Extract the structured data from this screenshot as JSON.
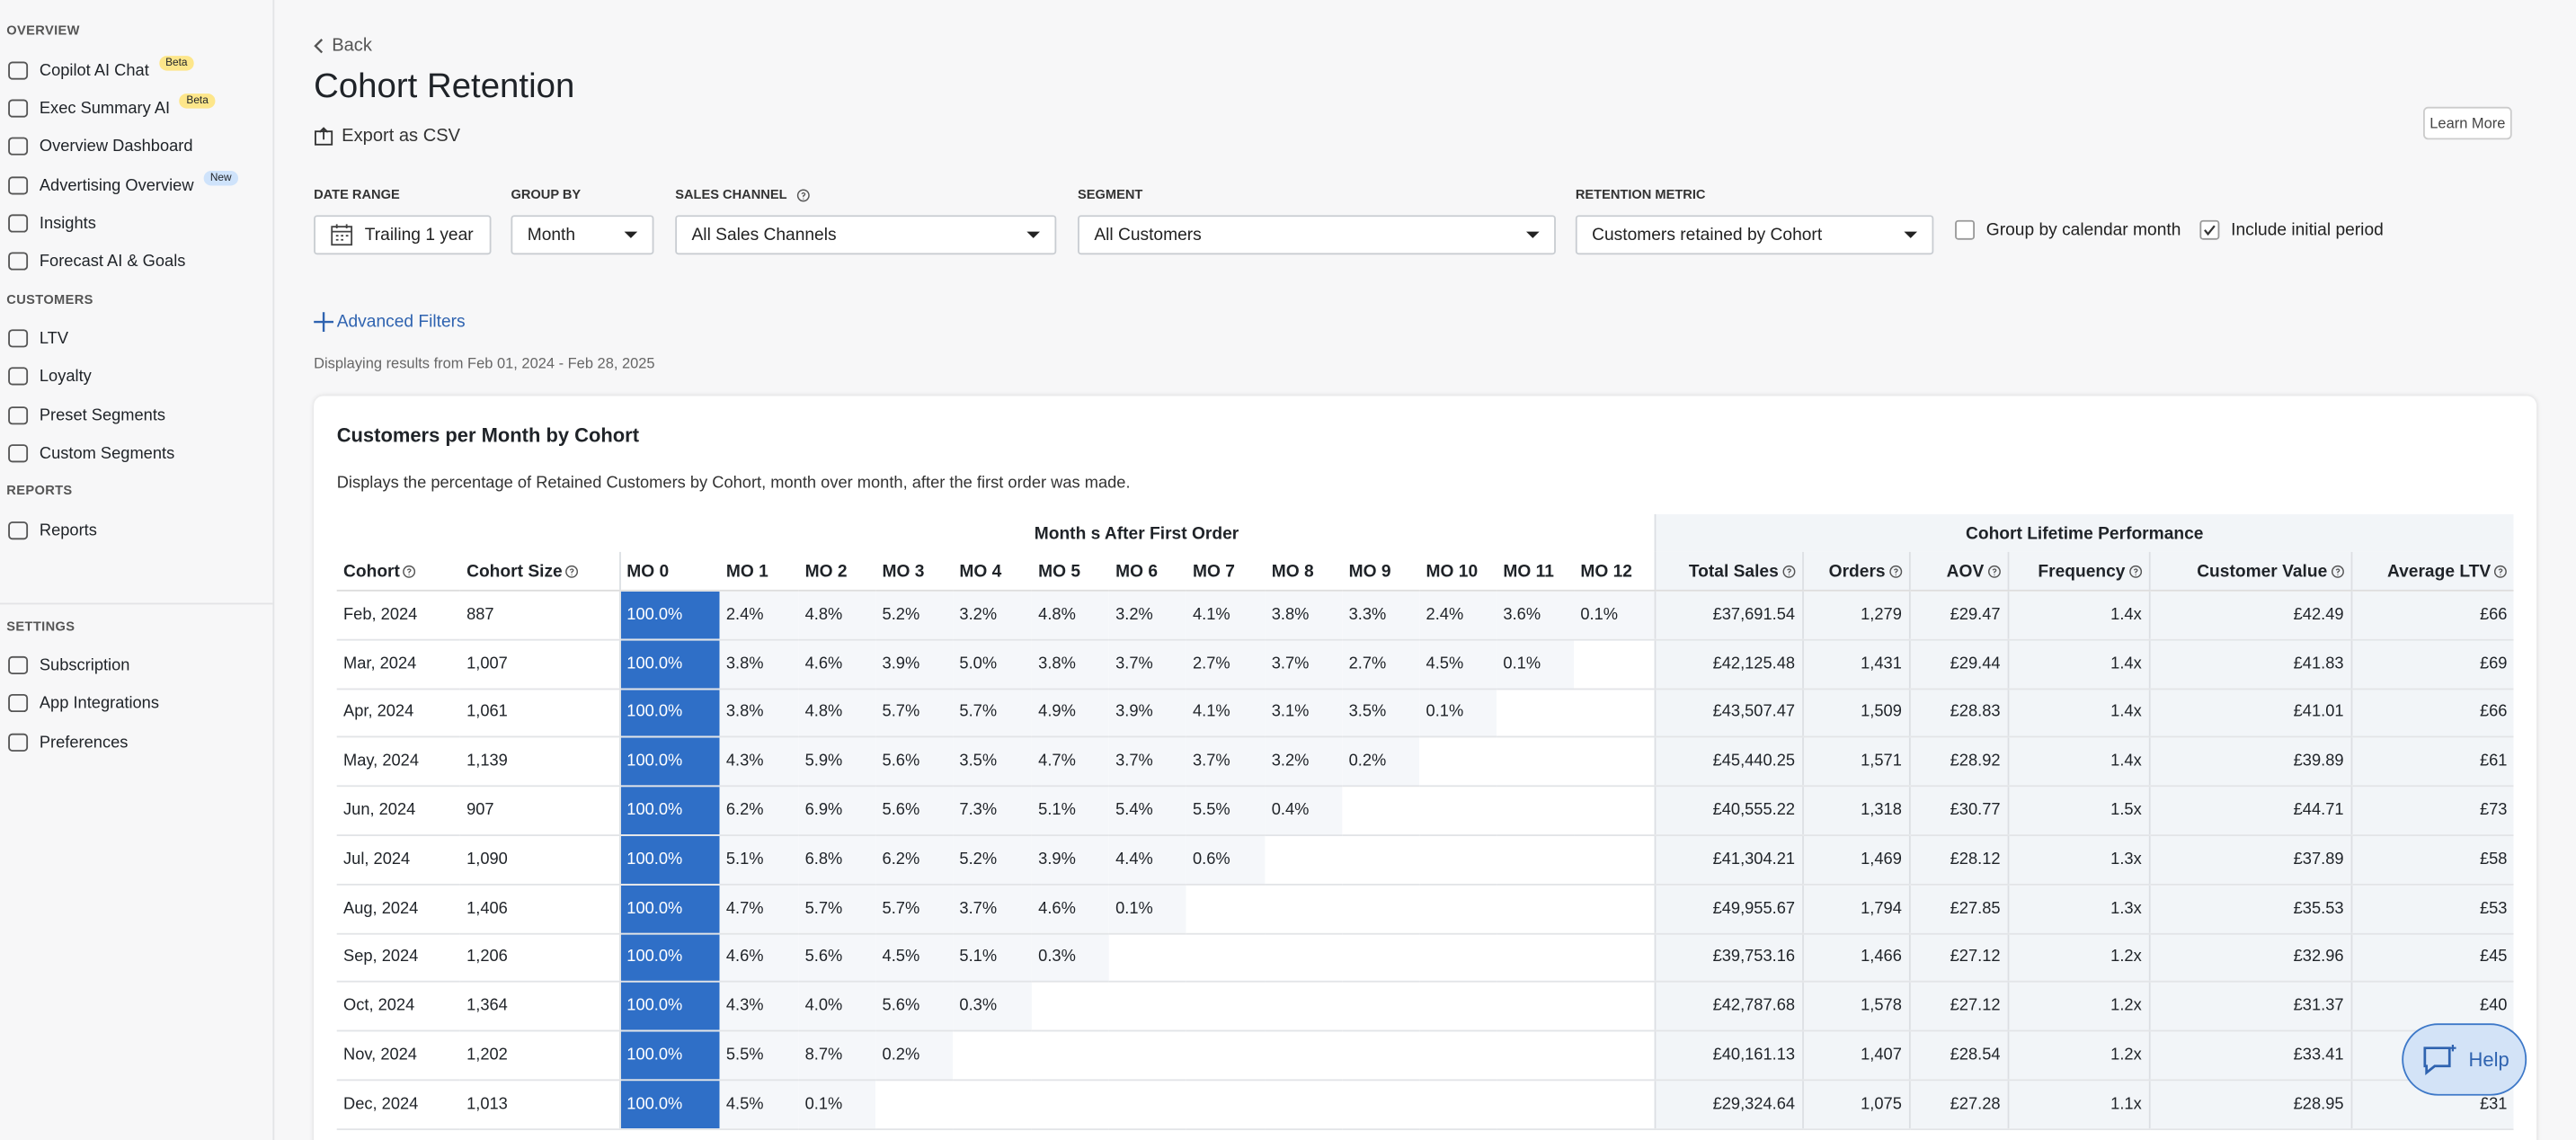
{
  "sidebar": {
    "sections": [
      {
        "label": "OVERVIEW",
        "items": [
          {
            "label": "Copilot AI Chat",
            "badge": "Beta"
          },
          {
            "label": "Exec Summary AI",
            "badge": "Beta"
          },
          {
            "label": "Overview Dashboard"
          },
          {
            "label": "Advertising Overview",
            "badge": "New"
          },
          {
            "label": "Insights"
          },
          {
            "label": "Forecast AI & Goals"
          }
        ]
      },
      {
        "label": "CUSTOMERS",
        "items": [
          {
            "label": "LTV"
          },
          {
            "label": "Loyalty"
          },
          {
            "label": "Preset Segments"
          },
          {
            "label": "Custom Segments"
          }
        ]
      },
      {
        "label": "REPORTS",
        "items": [
          {
            "label": "Reports"
          }
        ]
      },
      {
        "label": "SETTINGS",
        "items": [
          {
            "label": "Subscription"
          },
          {
            "label": "App Integrations"
          },
          {
            "label": "Preferences"
          }
        ]
      }
    ]
  },
  "header": {
    "back": "Back",
    "title": "Cohort Retention",
    "export": "Export as CSV",
    "learn_more": "Learn More"
  },
  "filters": [
    {
      "label": "DATE RANGE",
      "value": "Trailing 1 year",
      "calendar": true
    },
    {
      "label": "GROUP BY",
      "value": "Month",
      "dropdown": true
    },
    {
      "label": "SALES CHANNEL",
      "value": "All Sales Channels",
      "dropdown": true,
      "help_icon": true
    },
    {
      "label": "SEGMENT",
      "value": "All Customers",
      "dropdown": true
    },
    {
      "label": "RETENTION METRIC",
      "value": "Customers retained by Cohort",
      "dropdown": true
    }
  ],
  "checkboxes": [
    {
      "label": "Group by calendar month",
      "checked": false
    },
    {
      "label": "Include initial period",
      "checked": true
    }
  ],
  "advanced_filters": "Advanced Filters",
  "date_note": "Displaying results from Feb 01, 2024 - Feb 28, 2025",
  "card": {
    "title": "Customers per Month by Cohort",
    "description": "Displays the percentage of Retained Customers by Cohort, month over month, after the first order was made."
  },
  "table": {
    "groups": [
      "Month s After First Order",
      "Cohort Lifetime Performance"
    ],
    "columns": [
      {
        "label": "Cohort",
        "help_icon": true
      },
      {
        "label": "Cohort Size",
        "help_icon": true
      },
      {
        "label": "MO 0"
      },
      {
        "label": "MO 1"
      },
      {
        "label": "MO 2"
      },
      {
        "label": "MO 3"
      },
      {
        "label": "MO 4"
      },
      {
        "label": "MO 5"
      },
      {
        "label": "MO 6"
      },
      {
        "label": "MO 7"
      },
      {
        "label": "MO 8"
      },
      {
        "label": "MO 9"
      },
      {
        "label": "MO 10"
      },
      {
        "label": "MO 11"
      },
      {
        "label": "MO 12"
      },
      {
        "label": "Total Sales",
        "help_icon": true
      },
      {
        "label": "Orders",
        "help_icon": true
      },
      {
        "label": "AOV",
        "help_icon": true
      },
      {
        "label": "Frequency",
        "help_icon": true
      },
      {
        "label": "Customer Value",
        "help_icon": true
      },
      {
        "label": "Average LTV",
        "help_icon": true
      }
    ],
    "rows": [
      {
        "cohort": "Feb, 2024",
        "size": "887",
        "retention": [
          "100.0%",
          "2.4%",
          "4.8%",
          "5.2%",
          "3.2%",
          "4.8%",
          "3.2%",
          "4.1%",
          "3.8%",
          "3.3%",
          "2.4%",
          "3.6%",
          "0.1%"
        ],
        "total_sales": "£37,691.54",
        "orders": "1,279",
        "aov": "£29.47",
        "frequency": "1.4x",
        "customer_value": "£42.49",
        "avg_ltv": "£66"
      },
      {
        "cohort": "Mar, 2024",
        "size": "1,007",
        "retention": [
          "100.0%",
          "3.8%",
          "4.6%",
          "3.9%",
          "5.0%",
          "3.8%",
          "3.7%",
          "2.7%",
          "3.7%",
          "2.7%",
          "4.5%",
          "0.1%"
        ],
        "total_sales": "£42,125.48",
        "orders": "1,431",
        "aov": "£29.44",
        "frequency": "1.4x",
        "customer_value": "£41.83",
        "avg_ltv": "£69"
      },
      {
        "cohort": "Apr, 2024",
        "size": "1,061",
        "retention": [
          "100.0%",
          "3.8%",
          "4.8%",
          "5.7%",
          "5.7%",
          "4.9%",
          "3.9%",
          "4.1%",
          "3.1%",
          "3.5%",
          "0.1%"
        ],
        "total_sales": "£43,507.47",
        "orders": "1,509",
        "aov": "£28.83",
        "frequency": "1.4x",
        "customer_value": "£41.01",
        "avg_ltv": "£66"
      },
      {
        "cohort": "May, 2024",
        "size": "1,139",
        "retention": [
          "100.0%",
          "4.3%",
          "5.9%",
          "5.6%",
          "3.5%",
          "4.7%",
          "3.7%",
          "3.7%",
          "3.2%",
          "0.2%"
        ],
        "total_sales": "£45,440.25",
        "orders": "1,571",
        "aov": "£28.92",
        "frequency": "1.4x",
        "customer_value": "£39.89",
        "avg_ltv": "£61"
      },
      {
        "cohort": "Jun, 2024",
        "size": "907",
        "retention": [
          "100.0%",
          "6.2%",
          "6.9%",
          "5.6%",
          "7.3%",
          "5.1%",
          "5.4%",
          "5.5%",
          "0.4%"
        ],
        "total_sales": "£40,555.22",
        "orders": "1,318",
        "aov": "£30.77",
        "frequency": "1.5x",
        "customer_value": "£44.71",
        "avg_ltv": "£73"
      },
      {
        "cohort": "Jul, 2024",
        "size": "1,090",
        "retention": [
          "100.0%",
          "5.1%",
          "6.8%",
          "6.2%",
          "5.2%",
          "3.9%",
          "4.4%",
          "0.6%"
        ],
        "total_sales": "£41,304.21",
        "orders": "1,469",
        "aov": "£28.12",
        "frequency": "1.3x",
        "customer_value": "£37.89",
        "avg_ltv": "£58"
      },
      {
        "cohort": "Aug, 2024",
        "size": "1,406",
        "retention": [
          "100.0%",
          "4.7%",
          "5.7%",
          "5.7%",
          "3.7%",
          "4.6%",
          "0.1%"
        ],
        "total_sales": "£49,955.67",
        "orders": "1,794",
        "aov": "£27.85",
        "frequency": "1.3x",
        "customer_value": "£35.53",
        "avg_ltv": "£53"
      },
      {
        "cohort": "Sep, 2024",
        "size": "1,206",
        "retention": [
          "100.0%",
          "4.6%",
          "5.6%",
          "4.5%",
          "5.1%",
          "0.3%"
        ],
        "total_sales": "£39,753.16",
        "orders": "1,466",
        "aov": "£27.12",
        "frequency": "1.2x",
        "customer_value": "£32.96",
        "avg_ltv": "£45"
      },
      {
        "cohort": "Oct, 2024",
        "size": "1,364",
        "retention": [
          "100.0%",
          "4.3%",
          "4.0%",
          "5.6%",
          "0.3%"
        ],
        "total_sales": "£42,787.68",
        "orders": "1,578",
        "aov": "£27.12",
        "frequency": "1.2x",
        "customer_value": "£31.37",
        "avg_ltv": "£40"
      },
      {
        "cohort": "Nov, 2024",
        "size": "1,202",
        "retention": [
          "100.0%",
          "5.5%",
          "8.7%",
          "0.2%"
        ],
        "total_sales": "£40,161.13",
        "orders": "1,407",
        "aov": "£28.54",
        "frequency": "1.2x",
        "customer_value": "£33.41"
      },
      {
        "cohort": "Dec, 2024",
        "size": "1,013",
        "retention": [
          "100.0%",
          "4.5%",
          "0.1%"
        ],
        "total_sales": "£29,324.64",
        "orders": "1,075",
        "aov": "£27.28",
        "frequency": "1.1x",
        "customer_value": "£28.95",
        "avg_ltv": "£31"
      }
    ]
  },
  "help_button": "Help"
}
